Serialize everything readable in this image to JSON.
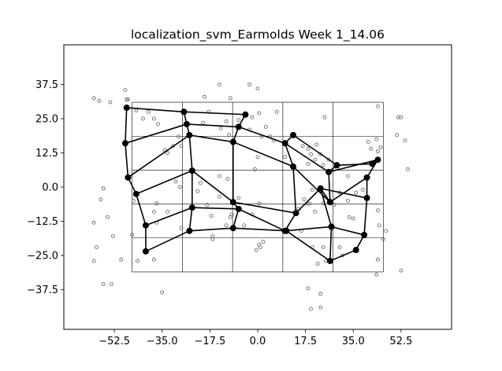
{
  "chart_data": {
    "type": "scatter",
    "title": "localization_svm_Earmolds Week 1_14.06",
    "xlabel": "",
    "ylabel": "",
    "xlim": [
      -71,
      71
    ],
    "ylim": [
      -52,
      52
    ],
    "grid": false,
    "x_ticks": [
      -52.5,
      -35.0,
      -17.5,
      0.0,
      17.5,
      35.0,
      52.5
    ],
    "x_tick_labels": [
      "−52.5",
      "−35.0",
      "−17.5",
      "0.0",
      "17.5",
      "35.0",
      "52.5"
    ],
    "y_ticks": [
      37.5,
      25.0,
      12.5,
      0.0,
      -12.5,
      -25.0,
      -37.5
    ],
    "y_tick_labels": [
      "37.5",
      "25.0",
      "12.5",
      "0.0",
      "−12.5",
      "−25.0",
      "−37.5"
    ],
    "reference_grid": {
      "x": [
        -46,
        -27.6,
        -9.2,
        9.2,
        27.6,
        46
      ],
      "y": [
        31,
        18.6,
        6.2,
        -6.2,
        -18.6,
        -31
      ]
    },
    "colors": {
      "nodes": "#000000",
      "samples": "#6e6e6e",
      "grid": "#000000"
    },
    "nodes": [
      [
        -48,
        29
      ],
      [
        -27,
        27.5
      ],
      [
        -4.5,
        26.5
      ],
      [
        13,
        19
      ],
      [
        29,
        8
      ],
      [
        42,
        8.5
      ],
      [
        -48.5,
        16
      ],
      [
        -26,
        23
      ],
      [
        -7,
        22
      ],
      [
        10,
        16
      ],
      [
        26,
        5.5
      ],
      [
        44,
        10
      ],
      [
        -47.5,
        3.5
      ],
      [
        -25,
        19
      ],
      [
        -9,
        16.5
      ],
      [
        13,
        7.5
      ],
      [
        26.5,
        -5.5
      ],
      [
        40,
        3.5
      ],
      [
        -44.5,
        -2.5
      ],
      [
        -24,
        6
      ],
      [
        -9,
        -5.5
      ],
      [
        14,
        -9.5
      ],
      [
        23,
        -0.5
      ],
      [
        40,
        -4
      ],
      [
        -41,
        -14
      ],
      [
        -24,
        -7.5
      ],
      [
        -7,
        -8
      ],
      [
        10,
        -16
      ],
      [
        27,
        -14.5
      ],
      [
        39,
        -17.5
      ],
      [
        -41,
        -23.5
      ],
      [
        -25,
        -16
      ],
      [
        -9,
        -15
      ],
      [
        10.5,
        -16
      ],
      [
        26.5,
        -27
      ],
      [
        36,
        -23
      ]
    ],
    "edges": [
      [
        0,
        1
      ],
      [
        1,
        2
      ],
      [
        3,
        4
      ],
      [
        4,
        5
      ],
      [
        6,
        7
      ],
      [
        7,
        8
      ],
      [
        8,
        9
      ],
      [
        9,
        10
      ],
      [
        10,
        11
      ],
      [
        12,
        13
      ],
      [
        13,
        14
      ],
      [
        14,
        15
      ],
      [
        15,
        16
      ],
      [
        16,
        17
      ],
      [
        18,
        19
      ],
      [
        19,
        20
      ],
      [
        20,
        21
      ],
      [
        21,
        22
      ],
      [
        22,
        23
      ],
      [
        24,
        25
      ],
      [
        25,
        26
      ],
      [
        26,
        27
      ],
      [
        27,
        28
      ],
      [
        28,
        29
      ],
      [
        30,
        31
      ],
      [
        31,
        32
      ],
      [
        32,
        33
      ],
      [
        33,
        34
      ],
      [
        34,
        35
      ],
      [
        0,
        6
      ],
      [
        6,
        12
      ],
      [
        12,
        18
      ],
      [
        18,
        24
      ],
      [
        24,
        30
      ],
      [
        1,
        7
      ],
      [
        7,
        13
      ],
      [
        13,
        19
      ],
      [
        19,
        25
      ],
      [
        25,
        31
      ],
      [
        2,
        8
      ],
      [
        8,
        14
      ],
      [
        14,
        20
      ],
      [
        20,
        26
      ],
      [
        26,
        32
      ],
      [
        3,
        9
      ],
      [
        9,
        15
      ],
      [
        15,
        21
      ],
      [
        21,
        27
      ],
      [
        27,
        33
      ],
      [
        4,
        10
      ],
      [
        10,
        16
      ],
      [
        16,
        22
      ],
      [
        22,
        28
      ],
      [
        28,
        34
      ],
      [
        5,
        11
      ],
      [
        11,
        17
      ],
      [
        17,
        23
      ],
      [
        23,
        29
      ],
      [
        29,
        35
      ]
    ],
    "samples": [
      [
        -60,
        32.5
      ],
      [
        -58,
        31.5
      ],
      [
        -54,
        31
      ],
      [
        -48.5,
        35.5
      ],
      [
        -48,
        32
      ],
      [
        -47.5,
        32
      ],
      [
        -44.5,
        28
      ],
      [
        -40,
        27.5
      ],
      [
        -38,
        25
      ],
      [
        -36.5,
        23
      ],
      [
        -42,
        25
      ],
      [
        -29,
        18.5
      ],
      [
        -28,
        15
      ],
      [
        -31,
        15
      ],
      [
        -34,
        13.5
      ],
      [
        -33,
        12.5
      ],
      [
        -19.5,
        33
      ],
      [
        -14,
        37.5
      ],
      [
        -10,
        32.5
      ],
      [
        -11.5,
        24
      ],
      [
        -13.5,
        21.5
      ],
      [
        -10.5,
        19
      ],
      [
        -3,
        37.5
      ],
      [
        0,
        36
      ],
      [
        7,
        27.5
      ],
      [
        -2,
        25.5
      ],
      [
        0.5,
        27
      ],
      [
        3,
        22
      ],
      [
        1.5,
        18.5
      ],
      [
        4.5,
        18.5
      ],
      [
        6,
        17
      ],
      [
        0,
        11
      ],
      [
        -1,
        6.5
      ],
      [
        -18,
        27.5
      ],
      [
        -20,
        23.5
      ],
      [
        -7,
        24.5
      ],
      [
        -3,
        21
      ],
      [
        10,
        11
      ],
      [
        16.5,
        15
      ],
      [
        18.5,
        14
      ],
      [
        21.5,
        15.5
      ],
      [
        23,
        12
      ],
      [
        19.5,
        12
      ],
      [
        21,
        10
      ],
      [
        18.5,
        8.5
      ],
      [
        24,
        8
      ],
      [
        26,
        10
      ],
      [
        29,
        7
      ],
      [
        24.5,
        25.5
      ],
      [
        40.5,
        16.5
      ],
      [
        43.5,
        17.5
      ],
      [
        45,
        14.5
      ],
      [
        44,
        13
      ],
      [
        41.5,
        14
      ],
      [
        51.5,
        25.5
      ],
      [
        52.5,
        25.5
      ],
      [
        51,
        19
      ],
      [
        54,
        17
      ],
      [
        55,
        6.5
      ],
      [
        44,
        29.5
      ],
      [
        -56.5,
        -0.5
      ],
      [
        -57.5,
        -4.5
      ],
      [
        -55,
        -11
      ],
      [
        -60,
        -13
      ],
      [
        -59,
        -22
      ],
      [
        -53,
        -18
      ],
      [
        -50,
        -26.5
      ],
      [
        -60,
        -27
      ],
      [
        -56.5,
        -35.5
      ],
      [
        -53.5,
        -35.5
      ],
      [
        -45.5,
        -5
      ],
      [
        -46,
        -17.5
      ],
      [
        -37,
        -6
      ],
      [
        -33,
        -9
      ],
      [
        -28,
        -15
      ],
      [
        -28.5,
        0
      ],
      [
        -30,
        2
      ],
      [
        -22,
        -1.5
      ],
      [
        -21,
        1.5
      ],
      [
        -18.5,
        -6.5
      ],
      [
        -17,
        -10.5
      ],
      [
        -14,
        -3.5
      ],
      [
        -14,
        4
      ],
      [
        -11,
        3
      ],
      [
        -16.5,
        -19
      ],
      [
        -16.5,
        -18
      ],
      [
        -10,
        -11
      ],
      [
        -5,
        -14
      ],
      [
        -11.5,
        -14
      ],
      [
        -0.5,
        -23
      ],
      [
        0.5,
        -21
      ],
      [
        1,
        -22
      ],
      [
        2,
        -20
      ],
      [
        -2,
        -10
      ],
      [
        0.5,
        -6
      ],
      [
        -7,
        -4
      ],
      [
        -9.5,
        -10
      ],
      [
        -38,
        -26.5
      ],
      [
        -35,
        -38.5
      ],
      [
        -38,
        -9
      ],
      [
        -37,
        -13
      ],
      [
        15,
        -8
      ],
      [
        18,
        -6
      ],
      [
        17,
        -4.5
      ],
      [
        20,
        -1
      ],
      [
        19,
        -6
      ],
      [
        21,
        -9
      ],
      [
        24,
        -6
      ],
      [
        28,
        -6.5
      ],
      [
        30,
        -2
      ],
      [
        31,
        -25
      ],
      [
        30,
        -22
      ],
      [
        24,
        -22
      ],
      [
        22,
        -28
      ],
      [
        20,
        -22
      ],
      [
        16,
        -16
      ],
      [
        25,
        -27
      ],
      [
        23,
        -39
      ],
      [
        23,
        -44
      ],
      [
        19.5,
        -44.5
      ],
      [
        18.5,
        -37
      ],
      [
        33,
        -5
      ],
      [
        35,
        -11.5
      ],
      [
        33.5,
        -11
      ],
      [
        36,
        -2
      ],
      [
        38.5,
        -1
      ],
      [
        33,
        4
      ],
      [
        44,
        -8.5
      ],
      [
        44.5,
        -14
      ],
      [
        47,
        -16
      ],
      [
        46,
        -19
      ],
      [
        44,
        -26.5
      ],
      [
        43.5,
        -32
      ],
      [
        52.5,
        -30.5
      ],
      [
        -44,
        -27
      ]
    ]
  }
}
